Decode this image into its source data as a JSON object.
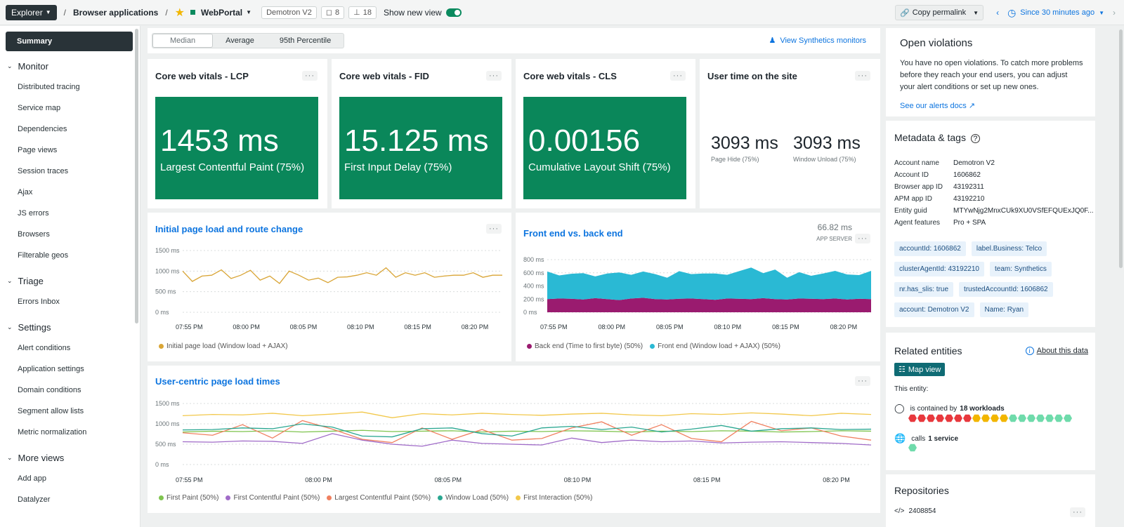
{
  "topbar": {
    "explorer": "Explorer",
    "crumb1": "Browser applications",
    "app": "WebPortal",
    "account": "Demotron V2",
    "tags_count": "8",
    "related_count": "18",
    "show_new_view": "Show new view",
    "copy_permalink": "Copy permalink",
    "time": "Since 30 minutes ago"
  },
  "sidebar": {
    "summary": "Summary",
    "monitor": "Monitor",
    "monitor_items": [
      "Distributed tracing",
      "Service map",
      "Dependencies",
      "Page views",
      "Session traces",
      "Ajax",
      "JS errors",
      "Browsers",
      "Filterable geos"
    ],
    "triage": "Triage",
    "triage_items": [
      "Errors Inbox"
    ],
    "settings": "Settings",
    "settings_items": [
      "Alert conditions",
      "Application settings",
      "Domain conditions",
      "Segment allow lists",
      "Metric normalization"
    ],
    "more_views": "More views",
    "more_items": [
      "Add app",
      "Datalyzer"
    ]
  },
  "toolbar": {
    "segments": [
      "Median",
      "Average",
      "95th Percentile"
    ],
    "synthetics": "View Synthetics monitors"
  },
  "vitals": {
    "lcp": {
      "title": "Core web vitals - LCP",
      "value": "1453 ms",
      "label": "Largest Contentful Paint (75%)"
    },
    "fid": {
      "title": "Core web vitals - FID",
      "value": "15.125 ms",
      "label": "First Input Delay (75%)"
    },
    "cls": {
      "title": "Core web vitals - CLS",
      "value": "0.00156",
      "label": "Cumulative Layout Shift (75%)"
    },
    "user_time": {
      "title": "User time on the site",
      "v1": "3093 ms",
      "l1": "Page Hide (75%)",
      "v2": "3093 ms",
      "l2": "Window Unload (75%)"
    }
  },
  "colors": {
    "accent": "#0c74df",
    "vital_green": "#0a875a"
  },
  "chart_data": [
    {
      "type": "line",
      "title": "Initial page load and route change",
      "yticks": [
        "1500 ms",
        "1000 ms",
        "500 ms",
        "0 ms"
      ],
      "ylim": [
        0,
        1500
      ],
      "xticks": [
        "07:55 PM",
        "08:00 PM",
        "08:05 PM",
        "08:10 PM",
        "08:15 PM",
        "08:20 PM"
      ],
      "series": [
        {
          "name": "Initial page load (Window load + AJAX)",
          "color": "#d9a536",
          "values": [
            1000,
            750,
            880,
            900,
            1030,
            820,
            900,
            1020,
            780,
            880,
            700,
            1000,
            900,
            780,
            830,
            720,
            850,
            860,
            900,
            960,
            900,
            1080,
            850,
            960,
            900,
            960,
            850,
            880,
            900,
            900,
            960,
            850,
            900,
            900
          ]
        }
      ]
    },
    {
      "type": "area",
      "title": "Front end vs. back end",
      "header_value": "66.82 ms",
      "header_label": "APP SERVER",
      "yticks": [
        "800 ms",
        "600 ms",
        "400 ms",
        "200 ms",
        "0 ms"
      ],
      "ylim": [
        0,
        800
      ],
      "xticks": [
        "07:55 PM",
        "08:00 PM",
        "08:05 PM",
        "08:10 PM",
        "08:15 PM",
        "08:20 PM"
      ],
      "series": [
        {
          "name": "Back end (Time to first byte) (50%)",
          "color": "#9a1b6f",
          "values": [
            200,
            210,
            205,
            195,
            215,
            200,
            185,
            210,
            220,
            200,
            195,
            205,
            210,
            200,
            190,
            210,
            205,
            200,
            215,
            200,
            195,
            210,
            205,
            200,
            210,
            195,
            205,
            200
          ]
        },
        {
          "name": "Front end (Window load + AJAX) (50%)",
          "color": "#2ab9d4",
          "values": [
            420,
            350,
            380,
            400,
            330,
            390,
            420,
            360,
            400,
            380,
            330,
            420,
            370,
            390,
            400,
            360,
            420,
            480,
            380,
            450,
            330,
            400,
            350,
            390,
            420,
            380,
            360,
            430
          ]
        }
      ]
    },
    {
      "type": "line",
      "title": "User-centric page load times",
      "yticks": [
        "1500 ms",
        "1000 ms",
        "500 ms",
        "0 ms"
      ],
      "ylim": [
        0,
        1500
      ],
      "xticks": [
        "07:55 PM",
        "08:00 PM",
        "08:05 PM",
        "08:10 PM",
        "08:15 PM",
        "08:20 PM"
      ],
      "series": [
        {
          "name": "First Paint (50%)",
          "color": "#7fc44f",
          "values": [
            800,
            820,
            810,
            830,
            800,
            820,
            840,
            810,
            820,
            830,
            800,
            820,
            810,
            830,
            820,
            800,
            820,
            810,
            830,
            820,
            800,
            810,
            830,
            820
          ]
        },
        {
          "name": "First Contentful Paint (50%)",
          "color": "#a06bc8",
          "values": [
            560,
            550,
            580,
            570,
            520,
            760,
            600,
            500,
            450,
            600,
            520,
            500,
            480,
            650,
            540,
            600,
            560,
            580,
            530,
            550,
            560,
            540,
            520,
            480
          ]
        },
        {
          "name": "Largest Contentful Paint (50%)",
          "color": "#f08060",
          "values": [
            780,
            720,
            980,
            650,
            1080,
            870,
            620,
            540,
            900,
            620,
            860,
            600,
            640,
            900,
            1050,
            720,
            980,
            640,
            560,
            1060,
            830,
            900,
            700,
            600
          ]
        },
        {
          "name": "Window Load (50%)",
          "color": "#2aa791",
          "values": [
            850,
            860,
            900,
            880,
            1000,
            920,
            700,
            680,
            880,
            900,
            760,
            700,
            900,
            940,
            860,
            920,
            800,
            870,
            960,
            820,
            880,
            900,
            860,
            870
          ]
        },
        {
          "name": "First Interaction (50%)",
          "color": "#f2c84b",
          "values": [
            1200,
            1230,
            1220,
            1260,
            1200,
            1240,
            1290,
            1150,
            1250,
            1220,
            1260,
            1230,
            1210,
            1240,
            1260,
            1220,
            1200,
            1250,
            1230,
            1270,
            1240,
            1200,
            1260,
            1230
          ]
        }
      ]
    }
  ],
  "right": {
    "violations_title": "Open violations",
    "violations_text": "You have no open violations. To catch more problems before they reach your end users, you can adjust your alert conditions or set up new ones.",
    "alerts_docs": "See our alerts docs",
    "metadata_title": "Metadata & tags",
    "metadata": [
      {
        "k": "Account name",
        "v": "Demotron V2"
      },
      {
        "k": "Account ID",
        "v": "1606862"
      },
      {
        "k": "Browser app ID",
        "v": "43192311"
      },
      {
        "k": "APM app ID",
        "v": "43192210"
      },
      {
        "k": "Entity guid",
        "v": "MTYwNjg2MnxCUk9XU0VSfEFQUExJQ0F..."
      },
      {
        "k": "Agent features",
        "v": "Pro + SPA"
      }
    ],
    "tags": [
      "accountId: 1606862",
      "label.Business: Telco",
      "clusterAgentId: 43192210",
      "team: Synthetics",
      "nr.has_slis: true",
      "trustedAccountId: 1606862",
      "account: Demotron V2",
      "Name: Ryan"
    ],
    "related_title": "Related entities",
    "about_data": "About this data",
    "map_view": "Map view",
    "this_entity": "This entity:",
    "contained_prefix": "is contained by",
    "contained_bold": "18 workloads",
    "calls_prefix": "calls",
    "calls_bold": "1 service",
    "workload_status": [
      "critical",
      "critical",
      "critical",
      "critical",
      "critical",
      "critical",
      "critical",
      "warning",
      "warning",
      "warning",
      "warning",
      "healthy",
      "healthy",
      "healthy",
      "healthy",
      "healthy",
      "healthy",
      "healthy"
    ],
    "repositories_title": "Repositories",
    "repo": "2408854"
  }
}
